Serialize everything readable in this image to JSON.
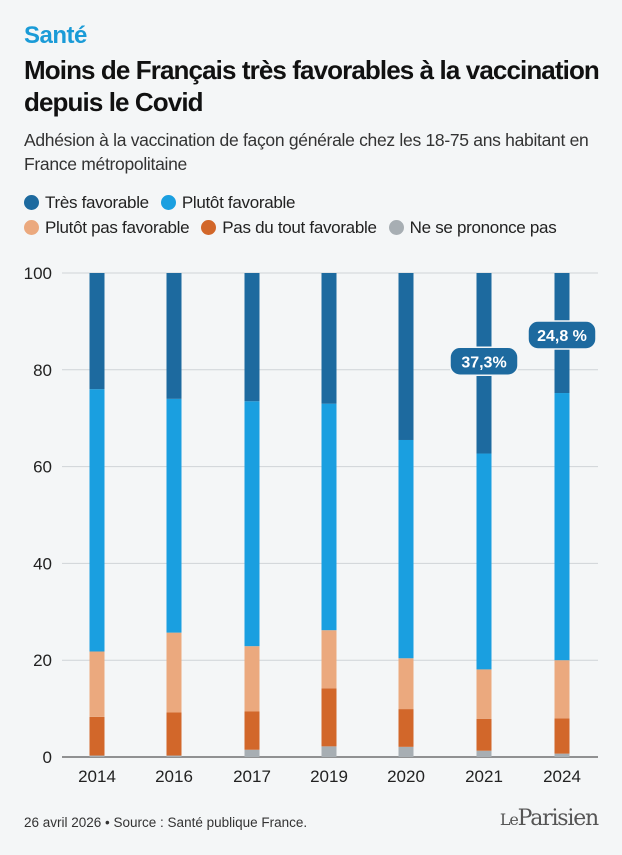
{
  "header": {
    "kicker": "Santé",
    "title": "Moins de Français très favorables à la vaccination depuis le Covid",
    "subtitle": "Adhésion à la vaccination de façon générale chez les 18-75 ans habitant en France métropolitaine"
  },
  "footer": {
    "source": "26 avril 2026 • Source : Santé publique France.",
    "logo_prefix": "Le",
    "logo_name": "Parisien"
  },
  "chart_data": {
    "type": "bar",
    "stacked": true,
    "categories": [
      "2014",
      "2016",
      "2017",
      "2019",
      "2020",
      "2021",
      "2024"
    ],
    "ylim": [
      0,
      100
    ],
    "yticks": [
      "0",
      "20",
      "40",
      "60",
      "80",
      "100"
    ],
    "grid": true,
    "legend_position": "top",
    "series": [
      {
        "name": "Ne se prononce pas",
        "color": "#a7aeb3",
        "values": [
          0.3,
          0.3,
          1.5,
          2.2,
          2.1,
          1.3,
          0.7
        ]
      },
      {
        "name": "Pas du tout favorable",
        "color": "#d2672a",
        "values": [
          8.0,
          8.9,
          7.9,
          12.0,
          7.8,
          6.6,
          7.3
        ]
      },
      {
        "name": "Plutôt pas favorable",
        "color": "#eba97e",
        "values": [
          13.5,
          16.5,
          13.5,
          12.0,
          10.5,
          10.2,
          12.0
        ]
      },
      {
        "name": "Plutôt favorable",
        "color": "#1a9fe0",
        "values": [
          54.2,
          48.3,
          50.6,
          46.8,
          45.1,
          44.6,
          55.2
        ]
      },
      {
        "name": "Très favorable",
        "color": "#1d6a9f",
        "values": [
          24.0,
          26.0,
          26.5,
          27.0,
          34.5,
          37.3,
          24.8
        ]
      }
    ],
    "legend_order": [
      "Très favorable",
      "Plutôt favorable",
      "Plutôt pas favorable",
      "Pas du tout favorable",
      "Ne se prononce pas"
    ],
    "annotations": [
      {
        "category": "2021",
        "text": "37,3%",
        "value": 37.3
      },
      {
        "category": "2024",
        "text": "24,8 %",
        "value": 24.8
      }
    ]
  }
}
